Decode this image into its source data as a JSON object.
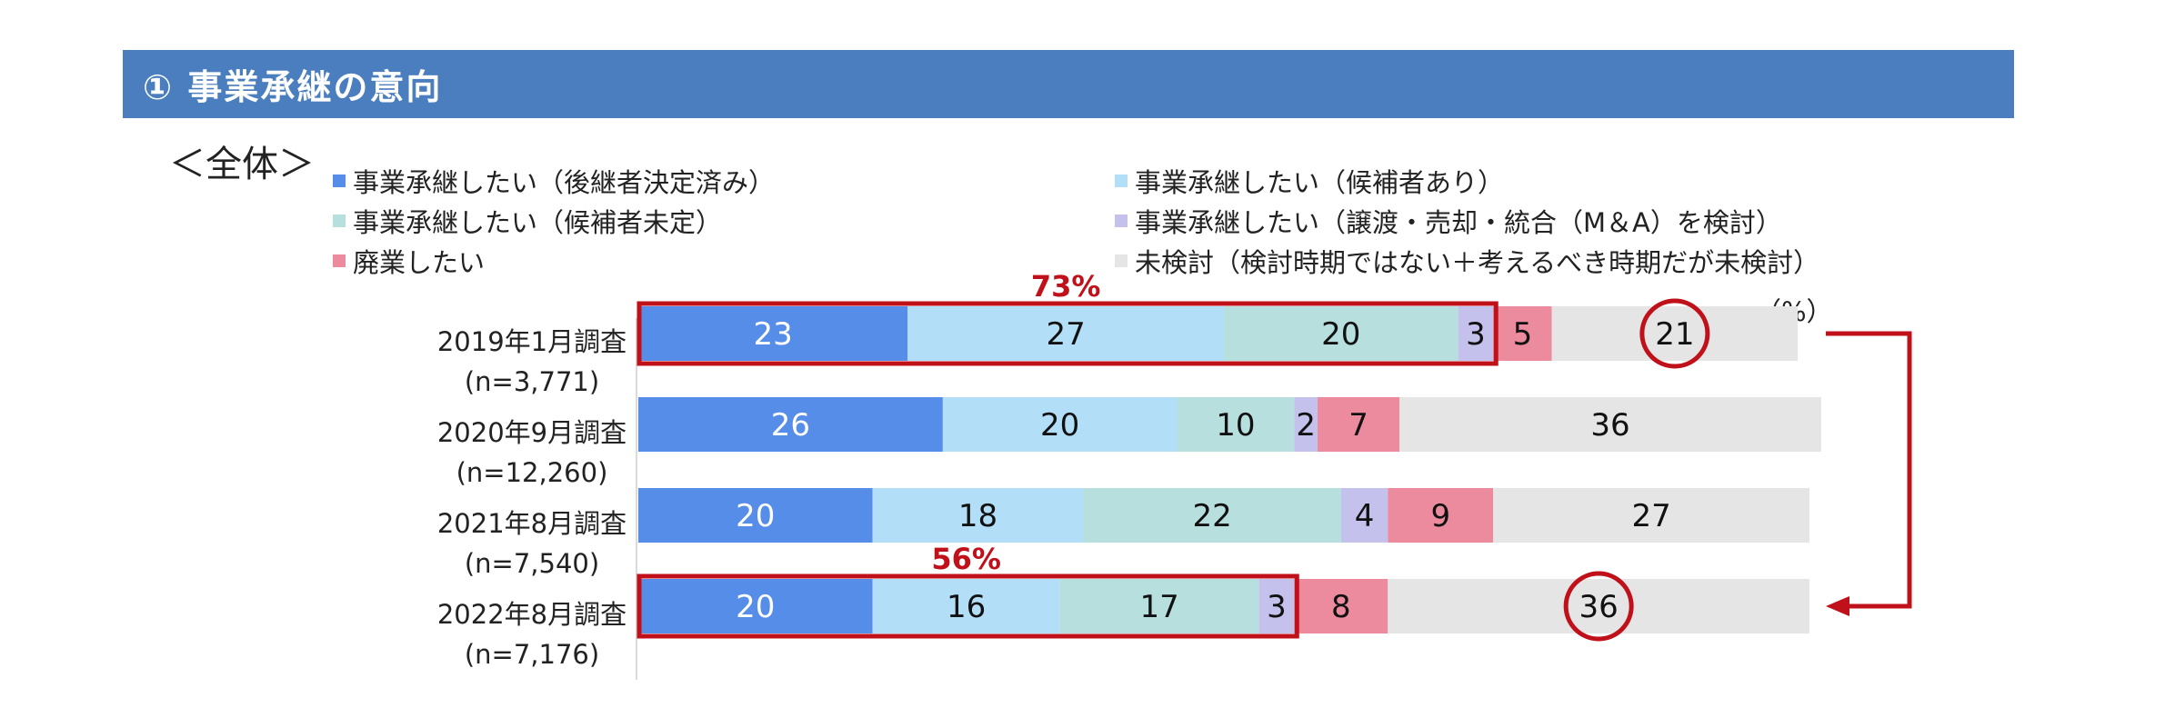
{
  "header": {
    "title": "① 事業承継の意向"
  },
  "scope": "＜全体＞",
  "unit": "（%）",
  "colors": {
    "successor_decided": "#568de8",
    "candidate_present": "#b2def8",
    "candidate_undecided": "#b6dfdd",
    "ma_consider": "#c4c2ec",
    "closure": "#ec8a9e",
    "not_considered": "#e5e5e5",
    "highlight": "#c0101a"
  },
  "chart_data": {
    "type": "bar",
    "orientation": "horizontal-stacked-100",
    "categories": [
      {
        "label": "2019年1月調査",
        "n": "(n=3,771)"
      },
      {
        "label": "2020年9月調査",
        "n": "(n=12,260)"
      },
      {
        "label": "2021年8月調査",
        "n": "(n=7,540)"
      },
      {
        "label": "2022年8月調査",
        "n": "(n=7,176)"
      }
    ],
    "series": [
      {
        "key": "successor_decided",
        "name": "事業承継したい（後継者決定済み）",
        "values": [
          23,
          26,
          20,
          20
        ]
      },
      {
        "key": "candidate_present",
        "name": "事業承継したい（候補者あり）",
        "values": [
          27,
          20,
          18,
          16
        ]
      },
      {
        "key": "candidate_undecided",
        "name": "事業承継したい（候補者未定）",
        "values": [
          20,
          10,
          22,
          17
        ]
      },
      {
        "key": "ma_consider",
        "name": "事業承継したい（譲渡・売却・統合（M＆A）を検討）",
        "values": [
          3,
          2,
          4,
          3
        ]
      },
      {
        "key": "closure",
        "name": "廃業したい",
        "values": [
          5,
          7,
          9,
          8
        ]
      },
      {
        "key": "not_considered",
        "name": "未検討（検討時期ではない＋考えるべき時期だが未検討）",
        "values": [
          21,
          36,
          27,
          36
        ]
      }
    ],
    "xlim": [
      0,
      100
    ],
    "legend_position": "top",
    "annotations": [
      {
        "row": 0,
        "text": "73%"
      },
      {
        "row": 3,
        "text": "56%"
      }
    ],
    "circled": [
      {
        "row": 0,
        "series": "not_considered"
      },
      {
        "row": 3,
        "series": "not_considered"
      }
    ]
  }
}
